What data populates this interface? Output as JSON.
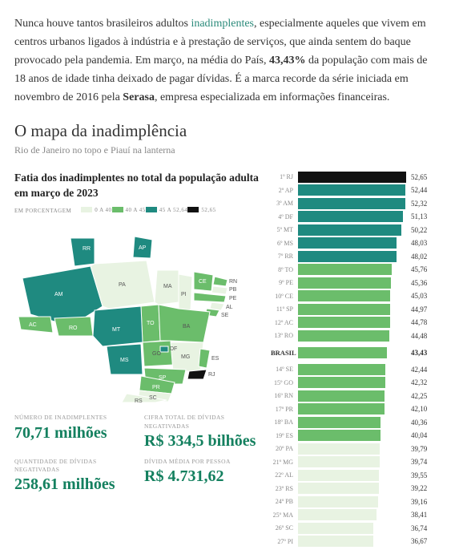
{
  "paragraph": {
    "t1": "Nunca houve tantos brasileiros adultos ",
    "link": "inadimplentes",
    "t2": ", especialmente aqueles que vivem em centros urbanos ligados à indústria e à prestação de serviços, que ainda sentem do baque provocado pela pandemia. Em março, na média do País, ",
    "bold1": "43,43%",
    "t3": " da população com mais de 18 anos de idade tinha deixado de pagar dívidas. É a marca recorde da série iniciada em novembro de 2016 pela ",
    "bold2": "Serasa",
    "t4": ", empresa especializada em informações financeiras."
  },
  "section": {
    "title": "O mapa da inadimplência",
    "subtitle": "Rio de Janeiro no topo e Piauí na lanterna"
  },
  "chart": {
    "title": "Fatia dos inadimplentes no total da população adulta em março de 2023",
    "legend_heading": "EM PORCENTAGEM",
    "legend": [
      {
        "label": "0 A 40",
        "color": "#e8f3e2"
      },
      {
        "label": "40 A 45",
        "color": "#6bbd6b"
      },
      {
        "label": "45 A 52,64",
        "color": "#1f8a80"
      },
      {
        "label": "52,65",
        "color": "#111111"
      }
    ],
    "bar_max": 52.65
  },
  "stats": [
    {
      "label": "NÚMERO DE INADIMPLENTES",
      "value": "70,71 milhões"
    },
    {
      "label": "CIFRA TOTAL DE DÍVIDAS NEGATIVADAS",
      "value": "R$ 334,5 bilhões"
    },
    {
      "label": "QUANTIDADE DE DÍVIDAS NEGATIVADAS",
      "value": "258,61 milhões"
    },
    {
      "label": "DÍVIDA MÉDIA POR PESSOA",
      "value": "R$ 4.731,62"
    }
  ],
  "ranking_top": [
    {
      "pos": "1º",
      "uf": "RJ",
      "val": 52.65,
      "color": "#111111"
    },
    {
      "pos": "2º",
      "uf": "AP",
      "val": 52.44,
      "color": "#1f8a80"
    },
    {
      "pos": "3º",
      "uf": "AM",
      "val": 52.32,
      "color": "#1f8a80"
    },
    {
      "pos": "4º",
      "uf": "DF",
      "val": 51.13,
      "color": "#1f8a80"
    },
    {
      "pos": "5º",
      "uf": "MT",
      "val": 50.22,
      "color": "#1f8a80"
    },
    {
      "pos": "6º",
      "uf": "MS",
      "val": 48.03,
      "color": "#1f8a80"
    },
    {
      "pos": "7º",
      "uf": "RR",
      "val": 48.02,
      "color": "#1f8a80"
    },
    {
      "pos": "8º",
      "uf": "TO",
      "val": 45.76,
      "color": "#6bbd6b"
    },
    {
      "pos": "9º",
      "uf": "PE",
      "val": 45.36,
      "color": "#6bbd6b"
    },
    {
      "pos": "10º",
      "uf": "CE",
      "val": 45.03,
      "color": "#6bbd6b"
    },
    {
      "pos": "11º",
      "uf": "SP",
      "val": 44.97,
      "color": "#6bbd6b"
    },
    {
      "pos": "12º",
      "uf": "AC",
      "val": 44.78,
      "color": "#6bbd6b"
    },
    {
      "pos": "13º",
      "uf": "RO",
      "val": 44.48,
      "color": "#6bbd6b"
    }
  ],
  "brasil": {
    "label": "BRASIL",
    "val": 43.43,
    "color": "#6bbd6b"
  },
  "ranking_bottom": [
    {
      "pos": "14º",
      "uf": "SE",
      "val": 42.44,
      "color": "#6bbd6b"
    },
    {
      "pos": "15º",
      "uf": "GO",
      "val": 42.32,
      "color": "#6bbd6b"
    },
    {
      "pos": "16º",
      "uf": "RN",
      "val": 42.25,
      "color": "#6bbd6b"
    },
    {
      "pos": "17º",
      "uf": "PR",
      "val": 42.1,
      "color": "#6bbd6b"
    },
    {
      "pos": "18º",
      "uf": "BA",
      "val": 40.36,
      "color": "#6bbd6b"
    },
    {
      "pos": "19º",
      "uf": "ES",
      "val": 40.04,
      "color": "#6bbd6b"
    },
    {
      "pos": "20º",
      "uf": "PA",
      "val": 39.79,
      "color": "#e8f3e2"
    },
    {
      "pos": "21º",
      "uf": "MG",
      "val": 39.74,
      "color": "#e8f3e2"
    },
    {
      "pos": "22º",
      "uf": "AL",
      "val": 39.55,
      "color": "#e8f3e2"
    },
    {
      "pos": "23º",
      "uf": "RS",
      "val": 39.22,
      "color": "#e8f3e2"
    },
    {
      "pos": "24º",
      "uf": "PB",
      "val": 39.16,
      "color": "#e8f3e2"
    },
    {
      "pos": "25º",
      "uf": "MA",
      "val": 38.41,
      "color": "#e8f3e2"
    },
    {
      "pos": "26º",
      "uf": "SC",
      "val": 36.74,
      "color": "#e8f3e2"
    },
    {
      "pos": "27º",
      "uf": "PI",
      "val": 36.67,
      "color": "#e8f3e2"
    }
  ],
  "map_colors": {
    "light": "#e8f3e2",
    "mid": "#6bbd6b",
    "dark": "#1f8a80",
    "black": "#111111",
    "stroke": "#ffffff"
  }
}
